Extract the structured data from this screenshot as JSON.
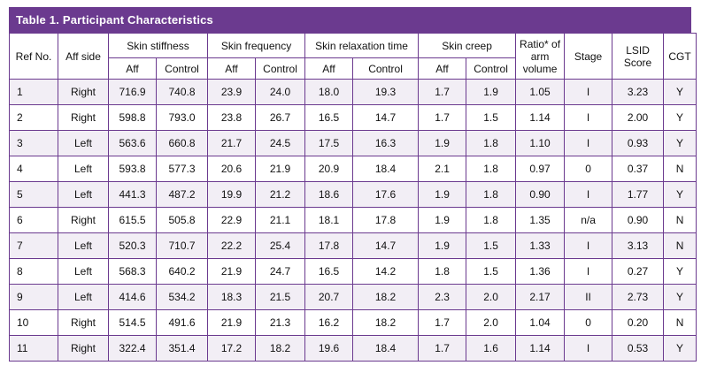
{
  "table": {
    "title": "Table 1. Participant Characteristics",
    "headers": {
      "ref_no": "Ref No.",
      "aff_side": "Aff side",
      "skin_stiffness": "Skin stiffness",
      "skin_frequency": "Skin frequency",
      "skin_relaxation_time": "Skin relaxation time",
      "skin_creep": "Skin creep",
      "ratio": "Ratio* of arm volume",
      "stage": "Stage",
      "lsid_score": "LSID Score",
      "cgt": "CGT",
      "aff": "Aff",
      "control": "Control"
    },
    "rows": [
      [
        "1",
        "Right",
        "716.9",
        "740.8",
        "23.9",
        "24.0",
        "18.0",
        "19.3",
        "1.7",
        "1.9",
        "1.05",
        "I",
        "3.23",
        "Y"
      ],
      [
        "2",
        "Right",
        "598.8",
        "793.0",
        "23.8",
        "26.7",
        "16.5",
        "14.7",
        "1.7",
        "1.5",
        "1.14",
        "I",
        "2.00",
        "Y"
      ],
      [
        "3",
        "Left",
        "563.6",
        "660.8",
        "21.7",
        "24.5",
        "17.5",
        "16.3",
        "1.9",
        "1.8",
        "1.10",
        "I",
        "0.93",
        "Y"
      ],
      [
        "4",
        "Left",
        "593.8",
        "577.3",
        "20.6",
        "21.9",
        "20.9",
        "18.4",
        "2.1",
        "1.8",
        "0.97",
        "0",
        "0.37",
        "N"
      ],
      [
        "5",
        "Left",
        "441.3",
        "487.2",
        "19.9",
        "21.2",
        "18.6",
        "17.6",
        "1.9",
        "1.8",
        "0.90",
        "I",
        "1.77",
        "Y"
      ],
      [
        "6",
        "Right",
        "615.5",
        "505.8",
        "22.9",
        "21.1",
        "18.1",
        "17.8",
        "1.9",
        "1.8",
        "1.35",
        "n/a",
        "0.90",
        "N"
      ],
      [
        "7",
        "Left",
        "520.3",
        "710.7",
        "22.2",
        "25.4",
        "17.8",
        "14.7",
        "1.9",
        "1.5",
        "1.33",
        "I",
        "3.13",
        "N"
      ],
      [
        "8",
        "Left",
        "568.3",
        "640.2",
        "21.9",
        "24.7",
        "16.5",
        "14.2",
        "1.8",
        "1.5",
        "1.36",
        "I",
        "0.27",
        "Y"
      ],
      [
        "9",
        "Left",
        "414.6",
        "534.2",
        "18.3",
        "21.5",
        "20.7",
        "18.2",
        "2.3",
        "2.0",
        "2.17",
        "II",
        "2.73",
        "Y"
      ],
      [
        "10",
        "Right",
        "514.5",
        "491.6",
        "21.9",
        "21.3",
        "16.2",
        "18.2",
        "1.7",
        "2.0",
        "1.04",
        "0",
        "0.20",
        "N"
      ],
      [
        "11",
        "Right",
        "322.4",
        "351.4",
        "17.2",
        "18.2",
        "19.6",
        "18.4",
        "1.7",
        "1.6",
        "1.14",
        "I",
        "0.53",
        "Y"
      ]
    ]
  }
}
